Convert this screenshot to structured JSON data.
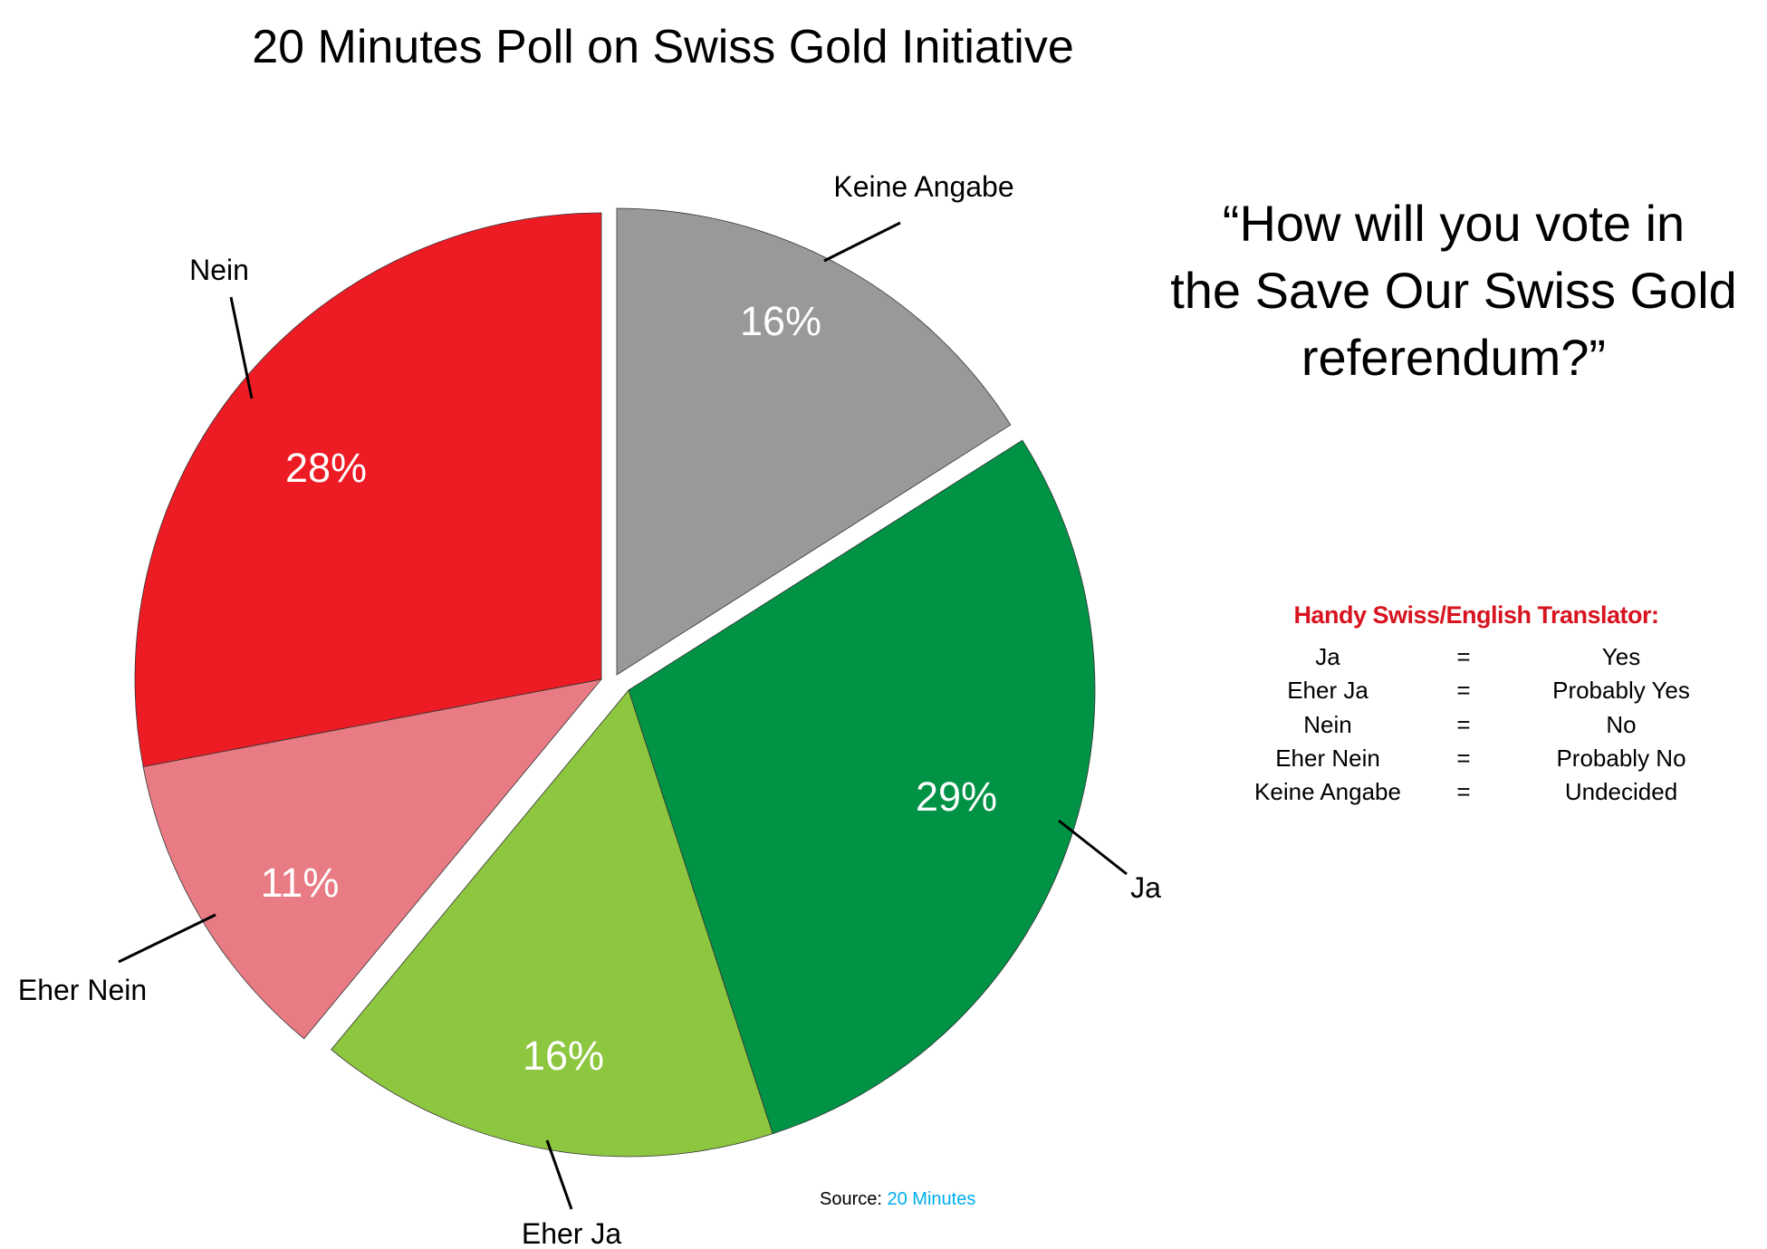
{
  "chart_data": {
    "type": "pie",
    "title": "20 Minutes Poll on Swiss Gold Initiative",
    "slices": [
      {
        "label": "Keine Angabe",
        "value": 16,
        "value_label": "16%",
        "color": "#999999"
      },
      {
        "label": "Ja",
        "value": 29,
        "value_label": "29%",
        "color": "#009245"
      },
      {
        "label": "Eher Ja",
        "value": 16,
        "value_label": "16%",
        "color": "#8dc63f"
      },
      {
        "label": "Eher Nein",
        "value": 11,
        "value_label": "11%",
        "color": "#e97b84"
      },
      {
        "label": "Nein",
        "value": 28,
        "value_label": "28%",
        "color": "#ed1c24"
      }
    ],
    "start": "top",
    "direction": "clockwise"
  },
  "question": [
    "“How will you vote in",
    "the Save Our Swiss Gold",
    "referendum?”"
  ],
  "translator": {
    "heading": "Handy Swiss/English Translator:",
    "rows": [
      {
        "swiss": "Ja",
        "eq": "=",
        "english": "Yes"
      },
      {
        "swiss": "Eher Ja",
        "eq": "=",
        "english": "Probably Yes"
      },
      {
        "swiss": "Nein",
        "eq": "=",
        "english": "No"
      },
      {
        "swiss": "Eher Nein",
        "eq": "=",
        "english": "Probably No"
      },
      {
        "swiss": "Keine Angabe",
        "eq": "=",
        "english": "Undecided"
      }
    ]
  },
  "source": {
    "label": "Source:",
    "link": "20 Minutes"
  }
}
